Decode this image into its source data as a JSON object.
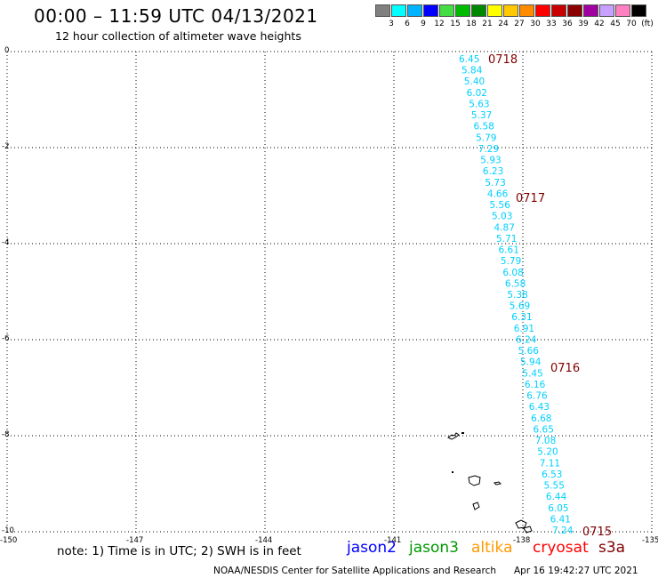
{
  "title": "00:00 – 11:59 UTC 04/13/2021",
  "subtitle": "12 hour collection of altimeter wave heights",
  "legend": {
    "colors": [
      "#808080",
      "#00ffff",
      "#00b4ff",
      "#0000ff",
      "#44dd44",
      "#00bb00",
      "#008800",
      "#ffff00",
      "#ffc800",
      "#ff8c00",
      "#ff0000",
      "#c80000",
      "#8b0000",
      "#a000a0",
      "#c8a0ff",
      "#ff80c0",
      "#000000"
    ],
    "labels": [
      "3",
      "6",
      "9",
      "12",
      "15",
      "18",
      "21",
      "24",
      "27",
      "30",
      "33",
      "36",
      "39",
      "42",
      "45",
      "70",
      "(ft)"
    ]
  },
  "axes": {
    "y_ticks": [
      "0",
      "-2",
      "-4",
      "-6",
      "-8",
      "-10"
    ],
    "x_ticks": [
      "-150",
      "-147",
      "-144",
      "-141",
      "-138",
      "-135"
    ]
  },
  "track": {
    "color": "#00d0ff",
    "values": [
      "6.45",
      "5.84",
      "5.40",
      "6.02",
      "5.63",
      "5.37",
      "6.58",
      "5.79",
      "7.29",
      "5.93",
      "6.23",
      "5.73",
      "4.66",
      "5.56",
      "5.03",
      "4.87",
      "5.71",
      "6.61",
      "5.79",
      "6.08",
      "6.58",
      "5.38",
      "5.69",
      "6.31",
      "6.91",
      "6.24",
      "5.66",
      "5.94",
      "5.45",
      "6.16",
      "6.76",
      "6.43",
      "6.68",
      "6.65",
      "7.08",
      "5.20",
      "7.11",
      "6.53",
      "5.55",
      "6.44",
      "6.05",
      "6.41",
      "7.24"
    ]
  },
  "time_labels": [
    "0718",
    "0717",
    "0716",
    "0715"
  ],
  "time_color": "#800000",
  "note": "note: 1) Time is in UTC; 2) SWH is in feet",
  "satellites": [
    {
      "name": "jason2",
      "color": "#0000ff"
    },
    {
      "name": "jason3",
      "color": "#009900"
    },
    {
      "name": "altika",
      "color": "#ff9900"
    },
    {
      "name": "cryosat",
      "color": "#ff0000"
    },
    {
      "name": "s3a",
      "color": "#800000"
    }
  ],
  "credit": "NOAA/NESDIS Center for Satellite Applications and Research",
  "timestamp": "Apr 16 19:42:27 UTC 2021"
}
